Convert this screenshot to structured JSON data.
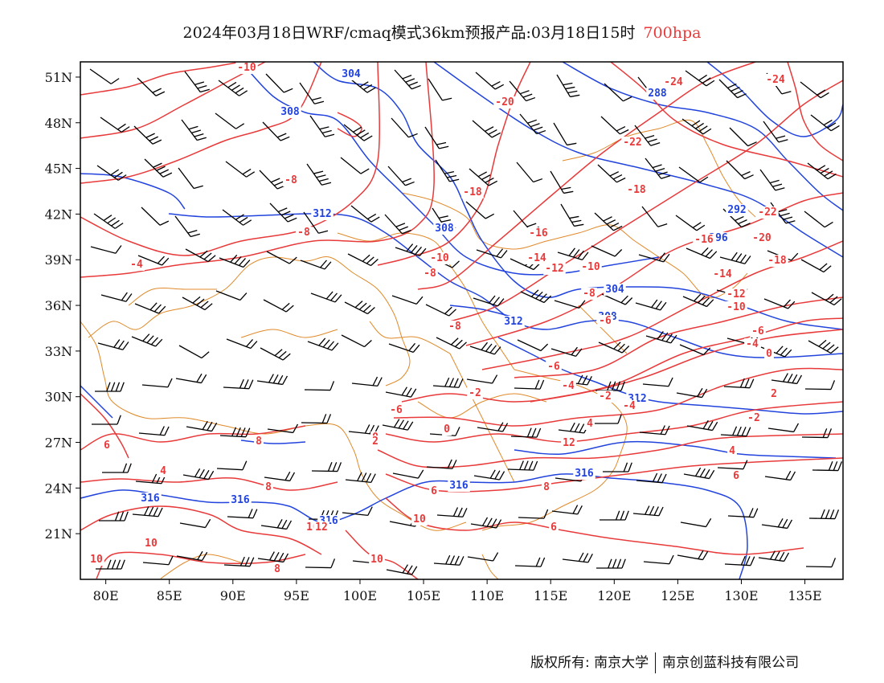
{
  "title": {
    "main": "2024年03月18日WRF/cmaq模式36km预报产品:03月18日15时",
    "level": "700hpa"
  },
  "colors": {
    "temperature": "#e83a3a",
    "height": "#2244dd",
    "border": "#e08a2a",
    "wind": "#000000",
    "title_level": "#e83a3a"
  },
  "axes": {
    "x_ticks": [
      "80E",
      "85E",
      "90E",
      "95E",
      "100E",
      "105E",
      "110E",
      "115E",
      "120E",
      "125E",
      "130E",
      "135E"
    ],
    "y_ticks": [
      "51N",
      "48N",
      "45N",
      "42N",
      "39N",
      "36N",
      "33N",
      "30N",
      "27N",
      "24N",
      "21N"
    ]
  },
  "map": {
    "lon_range": [
      78,
      138
    ],
    "lat_range": [
      18,
      52
    ],
    "temperature_labels": [
      "-10",
      "-24",
      "-24",
      "-20",
      "-22",
      "-8",
      "-18",
      "-18",
      "-22",
      "-8",
      "-16",
      "-16",
      "-20",
      "-4",
      "-10",
      "-14",
      "-12",
      "-10",
      "-18",
      "-8",
      "-8",
      "-14",
      "-12",
      "-10",
      "-6",
      "-6",
      "-8",
      "-6",
      "-4",
      "-2",
      "-4",
      "-2",
      "0",
      "2",
      "-6",
      "-4",
      "-2",
      "0",
      "0",
      "4",
      "2",
      "12",
      "4",
      "6",
      "4",
      "8",
      "8",
      "6",
      "8",
      "6",
      "6",
      "10",
      "10",
      "10",
      "8",
      "10",
      "12",
      "10"
    ],
    "height_labels": [
      "304",
      "308",
      "288",
      "312",
      "308",
      "304",
      "292",
      "296",
      "312",
      "308",
      "312",
      "316",
      "316",
      "316",
      "316",
      "316"
    ]
  },
  "footer": {
    "left": "版权所有: 南京大学",
    "right": "南京创蓝科技有限公司"
  }
}
